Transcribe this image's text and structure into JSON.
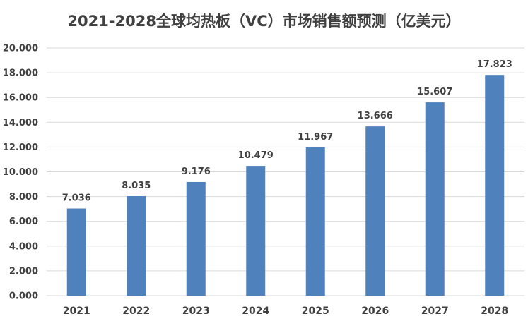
{
  "chart_data": {
    "type": "bar",
    "title": "2021-2028全球均热板（VC）市场销售额预测（亿美元）",
    "categories": [
      "2021",
      "2022",
      "2023",
      "2024",
      "2025",
      "2026",
      "2027",
      "2028"
    ],
    "values": [
      7.036,
      8.035,
      9.176,
      10.479,
      11.967,
      13.666,
      15.607,
      17.823
    ],
    "data_labels": [
      "7.036",
      "8.035",
      "9.176",
      "10.479",
      "11.967",
      "13.666",
      "15.607",
      "17.823"
    ],
    "y_ticks": [
      0,
      2,
      4,
      6,
      8,
      10,
      12,
      14,
      16,
      18,
      20
    ],
    "y_tick_labels": [
      "0.000",
      "2.000",
      "4.000",
      "6.000",
      "8.000",
      "10.000",
      "12.000",
      "14.000",
      "16.000",
      "18.000",
      "20.000"
    ],
    "ylim": [
      0,
      20
    ],
    "xlabel": "",
    "ylabel": "",
    "grid": true,
    "legend": "none",
    "colors": {
      "bar": "#4F81BD",
      "grid": "#D9D9D9",
      "text": "#404040"
    }
  }
}
